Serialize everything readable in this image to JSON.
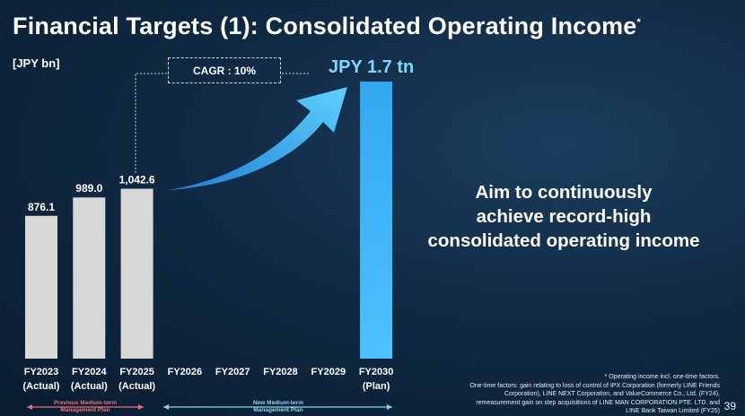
{
  "title": "Financial Targets (1): Consolidated Operating Income",
  "title_marker": "*",
  "unit": "[JPY bn]",
  "cagr_label": "CAGR : 10%",
  "target_label": "JPY 1.7 tn",
  "message_lines": [
    "Aim to continuously",
    "achieve record-high",
    "consolidated operating income"
  ],
  "footnote_lines": [
    "* Operating income incl. one-time factors.",
    "One-time factors: gain relating to loss of control of IPX Corporation (formerly LINE Friends",
    "Corporation), LINE NEXT Corporation, and ValueCommerce Co., Ltd. (FY24),",
    "remeasurement gain on step acquisitions of LINE MAN CORPORATION PTE. LTD. and",
    "LINE Bank Taiwan Limited (FY25)"
  ],
  "page_number": "39",
  "plans": [
    {
      "label_lines": [
        "Previous Medium-term",
        "Management Plan"
      ],
      "color": "#e8707a"
    },
    {
      "label_lines": [
        "New Medium-term",
        "Management Plan"
      ],
      "color": "#8fd3f2"
    }
  ],
  "colors": {
    "actual_bar": "#d8d8d8",
    "plan_bar": "#3aaaf0",
    "arrow": "#39b4f5"
  },
  "chart_data": {
    "type": "bar",
    "categories": [
      "FY2023",
      "FY2024",
      "FY2025",
      "FY2026",
      "FY2027",
      "FY2028",
      "FY2029",
      "FY2030"
    ],
    "category_sublabels": [
      "(Actual)",
      "(Actual)",
      "(Actual)",
      "",
      "",
      "",
      "",
      "(Plan)"
    ],
    "values": [
      876.1,
      989.0,
      1042.6,
      null,
      null,
      null,
      null,
      1700
    ],
    "value_labels": [
      "876.1",
      "989.0",
      "1,042.6",
      "",
      "",
      "",
      "",
      ""
    ],
    "ylabel": "[JPY bn]",
    "ylim": [
      0,
      1700
    ],
    "grid": false,
    "legend": "none"
  }
}
